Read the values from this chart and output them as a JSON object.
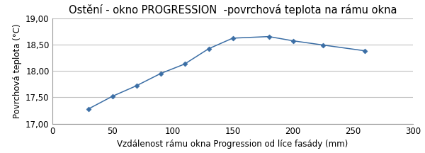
{
  "title": "Ostění - okno PROGRESSION  -povrcová teplota na rámu okna",
  "title_text": "Ostění - okno PROGRESSION  -povrchová teplota na rámu okna",
  "xlabel": "Vzdálenost rámu okna Progression od líce fasády (mm)",
  "ylabel_text": "Povrchová teplota (°C)",
  "x": [
    30,
    50,
    70,
    90,
    110,
    130,
    150,
    180,
    200,
    225,
    260
  ],
  "y": [
    17.28,
    17.52,
    17.72,
    17.95,
    18.13,
    18.42,
    18.62,
    18.65,
    18.57,
    18.49,
    18.38
  ],
  "xlim": [
    0,
    300
  ],
  "ylim": [
    17.0,
    19.0
  ],
  "xticks": [
    0,
    50,
    100,
    150,
    200,
    250,
    300
  ],
  "yticks": [
    17.0,
    17.5,
    18.0,
    18.5,
    19.0
  ],
  "ytick_labels": [
    "17,00",
    "17,50",
    "18,00",
    "18,50",
    "19,00"
  ],
  "line_color": "#3B6EA5",
  "marker": "D",
  "marker_size": 3.5,
  "grid_color": "#C0C0C0",
  "background_color": "#FFFFFF",
  "title_fontsize": 10.5,
  "label_fontsize": 8.5,
  "tick_fontsize": 8.5
}
